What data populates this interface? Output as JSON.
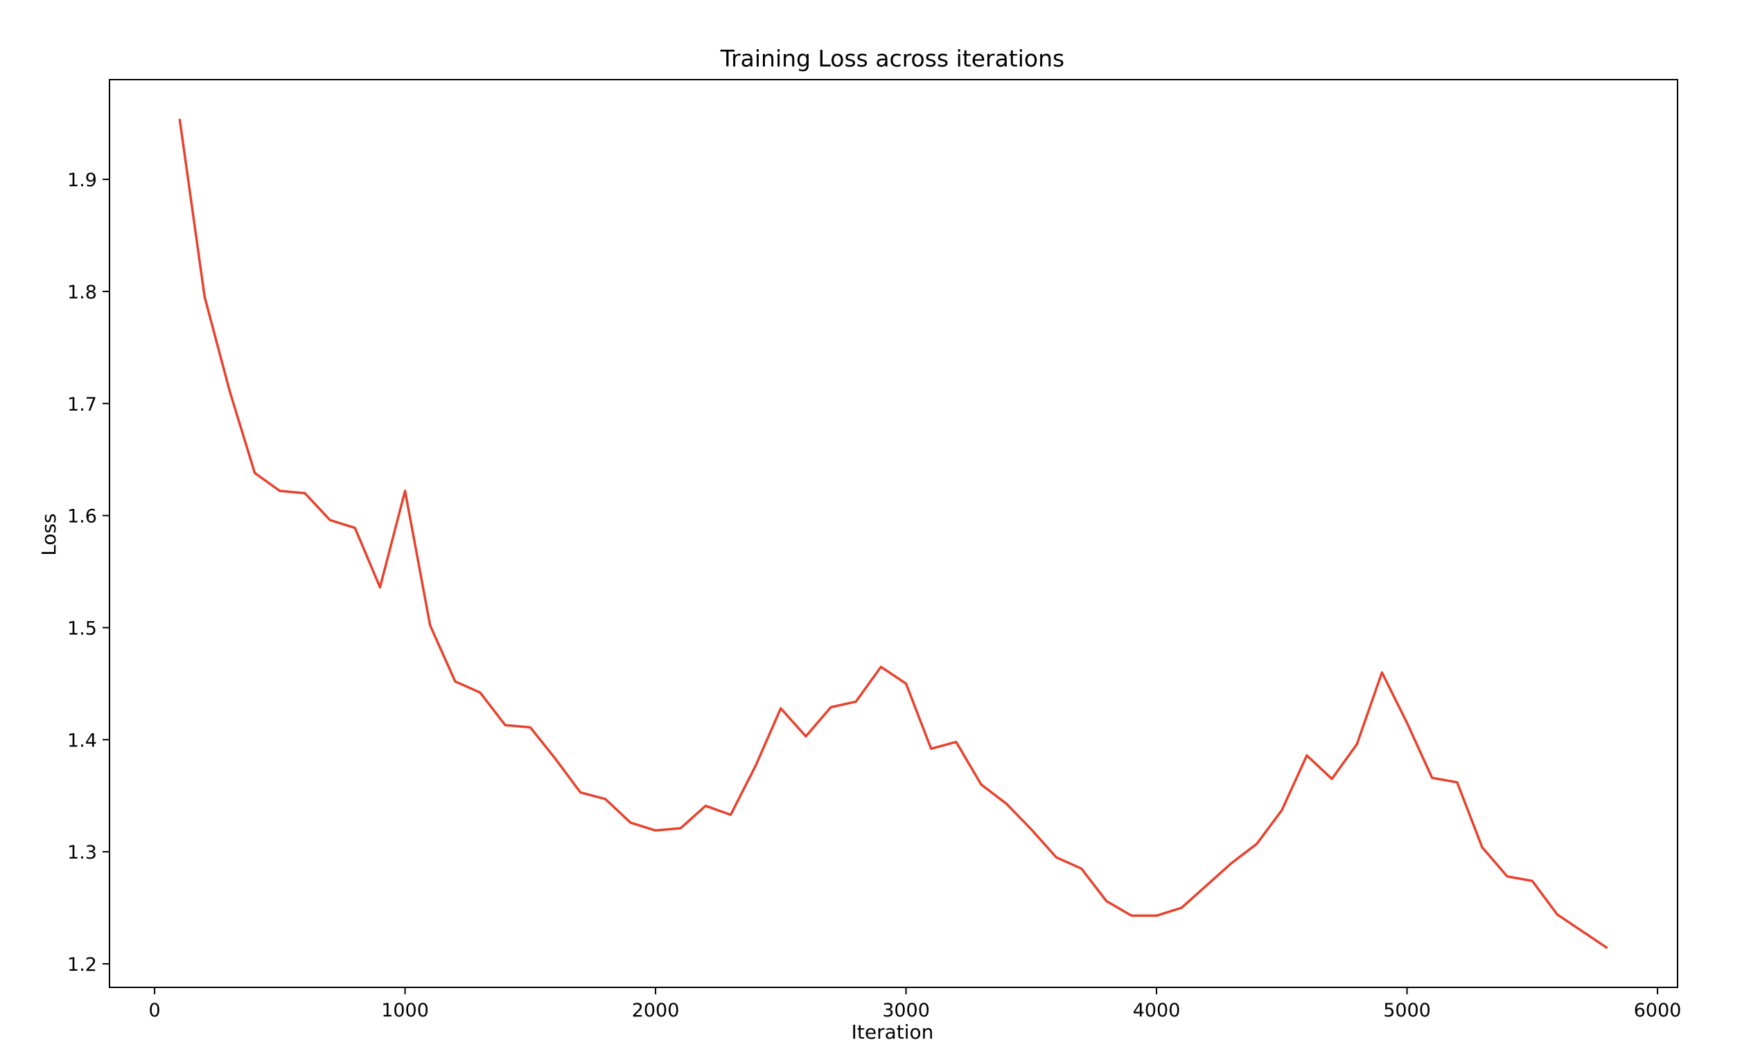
{
  "chart_data": {
    "type": "line",
    "title": "Training Loss across iterations",
    "xlabel": "Iteration",
    "ylabel": "Loss",
    "xlim": [
      -180,
      6080
    ],
    "ylim": [
      1.179,
      1.989
    ],
    "x_ticks": [
      0,
      1000,
      2000,
      3000,
      4000,
      5000,
      6000
    ],
    "x_tick_labels": [
      "0",
      "1000",
      "2000",
      "3000",
      "4000",
      "5000",
      "6000"
    ],
    "y_ticks": [
      1.2,
      1.3,
      1.4,
      1.5,
      1.6,
      1.7,
      1.8,
      1.9
    ],
    "y_tick_labels": [
      "1.2",
      "1.3",
      "1.4",
      "1.5",
      "1.6",
      "1.7",
      "1.8",
      "1.9"
    ],
    "grid": false,
    "legend": false,
    "line_color": "#e8412c",
    "series": [
      {
        "x": [
          100,
          200,
          300,
          400,
          500,
          600,
          700,
          800,
          900,
          1000,
          1100,
          1200,
          1300,
          1400,
          1500,
          1600,
          1700,
          1800,
          1900,
          2000,
          2100,
          2200,
          2300,
          2400,
          2500,
          2600,
          2700,
          2800,
          2900,
          3000,
          3100,
          3200,
          3300,
          3400,
          3500,
          3600,
          3700,
          3800,
          3900,
          4000,
          4100,
          4200,
          4300,
          4400,
          4500,
          4600,
          4700,
          4800,
          4900,
          5000,
          5100,
          5200,
          5300,
          5400,
          5500,
          5600,
          5700,
          5800
        ],
        "values": [
          1.954,
          1.795,
          1.711,
          1.638,
          1.622,
          1.62,
          1.596,
          1.589,
          1.536,
          1.622,
          1.502,
          1.452,
          1.442,
          1.413,
          1.411,
          1.383,
          1.353,
          1.347,
          1.326,
          1.319,
          1.321,
          1.341,
          1.333,
          1.377,
          1.428,
          1.403,
          1.429,
          1.434,
          1.465,
          1.45,
          1.392,
          1.398,
          1.36,
          1.343,
          1.32,
          1.295,
          1.285,
          1.256,
          1.243,
          1.243,
          1.25,
          1.27,
          1.29,
          1.307,
          1.337,
          1.386,
          1.365,
          1.396,
          1.46,
          1.415,
          1.366,
          1.362,
          1.304,
          1.278,
          1.274,
          1.244,
          1.229,
          1.214
        ]
      }
    ]
  }
}
